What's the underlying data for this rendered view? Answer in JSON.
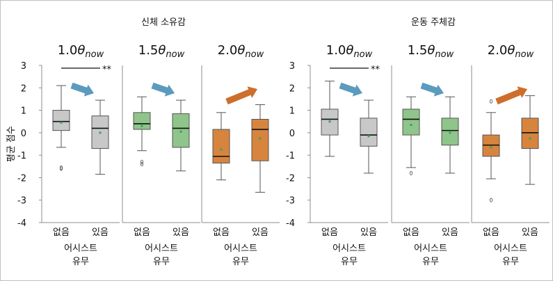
{
  "chart_data": {
    "type": "boxplot",
    "ylabel": "평균 점수",
    "ylim": [
      -4,
      3
    ],
    "yticks": [
      3,
      2,
      1,
      0,
      -1,
      -2,
      -3,
      -4
    ],
    "categories": [
      "없음",
      "있음"
    ],
    "xlabel_line1": "어시스트",
    "xlabel_line2": "유무",
    "groups": [
      {
        "title": "신체 소유감",
        "panels": [
          {
            "label_main": "1.0",
            "label_theta": "θ",
            "label_sub": "now",
            "color": "#c8c8c8",
            "arrow_color": "#5b9bbd",
            "arrow": "down",
            "significance": "**",
            "boxes": [
              {
                "min": -0.65,
                "q1": 0.1,
                "median": 0.5,
                "q3": 1.0,
                "max": 2.1,
                "mean": 0.45,
                "outliers": [
                  -1.55,
                  -1.6
                ]
              },
              {
                "min": -1.85,
                "q1": -0.7,
                "median": 0.2,
                "q3": 0.75,
                "max": 1.45,
                "mean": 0.0,
                "outliers": []
              }
            ]
          },
          {
            "label_main": "1.5",
            "label_theta": "θ",
            "label_sub": "now",
            "color": "#8fc48a",
            "arrow_color": "#5b9bbd",
            "arrow": "down",
            "significance": "",
            "boxes": [
              {
                "min": -0.8,
                "q1": 0.15,
                "median": 0.4,
                "q3": 0.9,
                "max": 1.6,
                "mean": 0.3,
                "outliers": [
                  -1.3,
                  -1.4
                ]
              },
              {
                "min": -1.7,
                "q1": -0.65,
                "median": 0.2,
                "q3": 0.85,
                "max": 1.45,
                "mean": 0.05,
                "outliers": []
              }
            ]
          },
          {
            "label_main": "2.0",
            "label_theta": "θ",
            "label_sub": "now",
            "color": "#d7843e",
            "arrow_color": "#cd6f2c",
            "arrow": "up",
            "significance": "",
            "boxes": [
              {
                "min": -2.1,
                "q1": -1.35,
                "median": -1.05,
                "q3": 0.15,
                "max": 0.9,
                "mean": -0.75,
                "outliers": []
              },
              {
                "min": -2.65,
                "q1": -1.25,
                "median": 0.15,
                "q3": 0.6,
                "max": 1.25,
                "mean": -0.25,
                "outliers": []
              }
            ]
          }
        ]
      },
      {
        "title": "운동 주체감",
        "panels": [
          {
            "label_main": "1.0",
            "label_theta": "θ",
            "label_sub": "now",
            "color": "#c8c8c8",
            "arrow_color": "#5b9bbd",
            "arrow": "down",
            "significance": "**",
            "boxes": [
              {
                "min": -1.05,
                "q1": -0.1,
                "median": 0.6,
                "q3": 1.05,
                "max": 2.3,
                "mean": 0.5,
                "outliers": []
              },
              {
                "min": -1.8,
                "q1": -0.6,
                "median": -0.1,
                "q3": 0.65,
                "max": 1.45,
                "mean": -0.15,
                "outliers": []
              }
            ]
          },
          {
            "label_main": "1.5",
            "label_theta": "θ",
            "label_sub": "now",
            "color": "#8fc48a",
            "arrow_color": "#5b9bbd",
            "arrow": "down",
            "significance": "",
            "boxes": [
              {
                "min": -1.55,
                "q1": -0.1,
                "median": 0.6,
                "q3": 1.05,
                "max": 1.6,
                "mean": 0.35,
                "outliers": [
                  -1.8
                ]
              },
              {
                "min": -1.8,
                "q1": -0.55,
                "median": 0.1,
                "q3": 0.65,
                "max": 1.6,
                "mean": 0.0,
                "outliers": []
              }
            ]
          },
          {
            "label_main": "2.0",
            "label_theta": "θ",
            "label_sub": "now",
            "color": "#d7843e",
            "arrow_color": "#cd6f2c",
            "arrow": "up",
            "significance": "",
            "boxes": [
              {
                "min": -2.05,
                "q1": -1.05,
                "median": -0.55,
                "q3": -0.1,
                "max": 0.9,
                "mean": -0.65,
                "outliers": [
                  1.4,
                  -3.0
                ]
              },
              {
                "min": -2.3,
                "q1": -0.7,
                "median": 0.0,
                "q3": 0.65,
                "max": 1.65,
                "mean": -0.25,
                "outliers": []
              }
            ]
          }
        ]
      }
    ]
  }
}
